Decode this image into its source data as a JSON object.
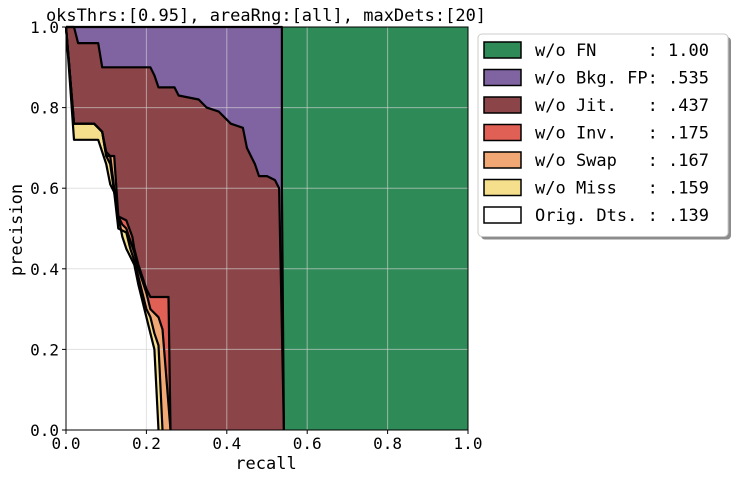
{
  "chart_data": {
    "type": "area",
    "title": "oksThrs:[0.95], areaRng:[all], maxDets:[20]",
    "xlabel": "recall",
    "ylabel": "precision",
    "xlim": [
      0,
      1
    ],
    "ylim": [
      0,
      1
    ],
    "x_ticks": [
      "0.0",
      "0.2",
      "0.4",
      "0.6",
      "0.8",
      "1.0"
    ],
    "y_ticks": [
      "0.0",
      "0.2",
      "0.4",
      "0.6",
      "0.8",
      "1.0"
    ],
    "grid": true,
    "legend_position": "upper-right-outside",
    "series": [
      {
        "name": "w/o FN     : 1.00",
        "color": "#2e8b57",
        "points": [
          [
            0,
            1.0
          ],
          [
            1.0,
            1.0
          ]
        ]
      },
      {
        "name": "w/o Bkg. FP: .535",
        "color": "#8064a2",
        "points": [
          [
            0,
            1.0
          ],
          [
            0.537,
            1.0
          ],
          [
            0.537,
            0.6
          ],
          [
            0.542,
            0.0
          ]
        ]
      },
      {
        "name": "w/o Jit.   : .437",
        "color": "#8b4447",
        "points": [
          [
            0,
            1.0
          ],
          [
            0.02,
            1.0
          ],
          [
            0.03,
            0.96
          ],
          [
            0.08,
            0.96
          ],
          [
            0.09,
            0.9
          ],
          [
            0.21,
            0.9
          ],
          [
            0.22,
            0.88
          ],
          [
            0.23,
            0.85
          ],
          [
            0.27,
            0.85
          ],
          [
            0.28,
            0.83
          ],
          [
            0.33,
            0.82
          ],
          [
            0.35,
            0.8
          ],
          [
            0.38,
            0.79
          ],
          [
            0.41,
            0.76
          ],
          [
            0.44,
            0.75
          ],
          [
            0.45,
            0.7
          ],
          [
            0.46,
            0.68
          ],
          [
            0.47,
            0.66
          ],
          [
            0.48,
            0.63
          ],
          [
            0.5,
            0.63
          ],
          [
            0.52,
            0.62
          ],
          [
            0.53,
            0.6
          ],
          [
            0.542,
            0.0
          ]
        ]
      },
      {
        "name": "w/o Inv.   : .175",
        "color": "#e06055",
        "points": [
          [
            0,
            1.0
          ],
          [
            0.02,
            0.76
          ],
          [
            0.07,
            0.76
          ],
          [
            0.09,
            0.74
          ],
          [
            0.1,
            0.69
          ],
          [
            0.11,
            0.68
          ],
          [
            0.12,
            0.6
          ],
          [
            0.13,
            0.53
          ],
          [
            0.15,
            0.52
          ],
          [
            0.165,
            0.48
          ],
          [
            0.17,
            0.45
          ],
          [
            0.18,
            0.41
          ],
          [
            0.19,
            0.38
          ],
          [
            0.2,
            0.35
          ],
          [
            0.21,
            0.33
          ],
          [
            0.255,
            0.33
          ],
          [
            0.26,
            0.0
          ]
        ]
      },
      {
        "name": "w/o Swap   : .167",
        "color": "#f2a875",
        "points": [
          [
            0,
            1.0
          ],
          [
            0.02,
            0.76
          ],
          [
            0.07,
            0.76
          ],
          [
            0.09,
            0.74
          ],
          [
            0.1,
            0.68
          ],
          [
            0.12,
            0.68
          ],
          [
            0.13,
            0.53
          ],
          [
            0.14,
            0.51
          ],
          [
            0.15,
            0.5
          ],
          [
            0.16,
            0.47
          ],
          [
            0.17,
            0.44
          ],
          [
            0.18,
            0.4
          ],
          [
            0.2,
            0.34
          ],
          [
            0.21,
            0.3
          ],
          [
            0.23,
            0.28
          ],
          [
            0.24,
            0.25
          ],
          [
            0.26,
            0.0
          ]
        ]
      },
      {
        "name": "w/o Miss   : .159",
        "color": "#f5df8c",
        "points": [
          [
            0,
            1.0
          ],
          [
            0.02,
            0.76
          ],
          [
            0.07,
            0.76
          ],
          [
            0.09,
            0.74
          ],
          [
            0.1,
            0.68
          ],
          [
            0.11,
            0.66
          ],
          [
            0.12,
            0.59
          ],
          [
            0.13,
            0.5
          ],
          [
            0.15,
            0.49
          ],
          [
            0.16,
            0.45
          ],
          [
            0.17,
            0.42
          ],
          [
            0.18,
            0.38
          ],
          [
            0.19,
            0.34
          ],
          [
            0.2,
            0.3
          ],
          [
            0.21,
            0.28
          ],
          [
            0.22,
            0.24
          ],
          [
            0.23,
            0.21
          ],
          [
            0.24,
            0.0
          ]
        ]
      },
      {
        "name": "Orig. Dts. : .139",
        "color": "#ffffff",
        "points": [
          [
            0,
            1.0
          ],
          [
            0.02,
            0.72
          ],
          [
            0.08,
            0.72
          ],
          [
            0.09,
            0.69
          ],
          [
            0.1,
            0.66
          ],
          [
            0.11,
            0.61
          ],
          [
            0.12,
            0.59
          ],
          [
            0.13,
            0.53
          ],
          [
            0.14,
            0.48
          ],
          [
            0.15,
            0.45
          ],
          [
            0.16,
            0.43
          ],
          [
            0.17,
            0.41
          ],
          [
            0.18,
            0.36
          ],
          [
            0.19,
            0.32
          ],
          [
            0.2,
            0.28
          ],
          [
            0.21,
            0.24
          ],
          [
            0.22,
            0.2
          ],
          [
            0.23,
            0.0
          ]
        ]
      }
    ]
  }
}
